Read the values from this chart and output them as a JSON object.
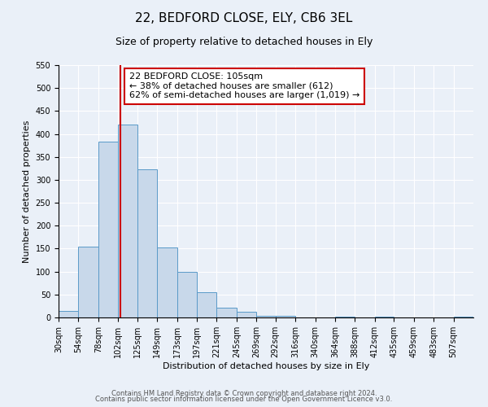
{
  "title": "22, BEDFORD CLOSE, ELY, CB6 3EL",
  "subtitle": "Size of property relative to detached houses in Ely",
  "xlabel": "Distribution of detached houses by size in Ely",
  "ylabel": "Number of detached properties",
  "bin_labels": [
    "30sqm",
    "54sqm",
    "78sqm",
    "102sqm",
    "125sqm",
    "149sqm",
    "173sqm",
    "197sqm",
    "221sqm",
    "245sqm",
    "269sqm",
    "292sqm",
    "316sqm",
    "340sqm",
    "364sqm",
    "388sqm",
    "412sqm",
    "435sqm",
    "459sqm",
    "483sqm",
    "507sqm"
  ],
  "bar_values": [
    15,
    155,
    383,
    420,
    323,
    153,
    100,
    55,
    22,
    12,
    3,
    3,
    0,
    0,
    2,
    0,
    2,
    0,
    0,
    0,
    2
  ],
  "bin_edges": [
    30,
    54,
    78,
    102,
    125,
    149,
    173,
    197,
    221,
    245,
    269,
    292,
    316,
    340,
    364,
    388,
    412,
    435,
    459,
    483,
    507,
    531
  ],
  "bar_color": "#c8d8ea",
  "bar_edge_color": "#5a9ac8",
  "vline_x": 105,
  "vline_color": "#cc0000",
  "annotation_line1": "22 BEDFORD CLOSE: 105sqm",
  "annotation_line2": "← 38% of detached houses are smaller (612)",
  "annotation_line3": "62% of semi-detached houses are larger (1,019) →",
  "annotation_box_color": "#cc0000",
  "annotation_box_bg": "#ffffff",
  "ylim": [
    0,
    550
  ],
  "yticks": [
    0,
    50,
    100,
    150,
    200,
    250,
    300,
    350,
    400,
    450,
    500,
    550
  ],
  "bg_color": "#eaf0f8",
  "footer_line1": "Contains HM Land Registry data © Crown copyright and database right 2024.",
  "footer_line2": "Contains public sector information licensed under the Open Government Licence v3.0.",
  "title_fontsize": 11,
  "subtitle_fontsize": 9,
  "axis_label_fontsize": 8,
  "tick_fontsize": 7,
  "annotation_fontsize": 8,
  "footer_fontsize": 6
}
